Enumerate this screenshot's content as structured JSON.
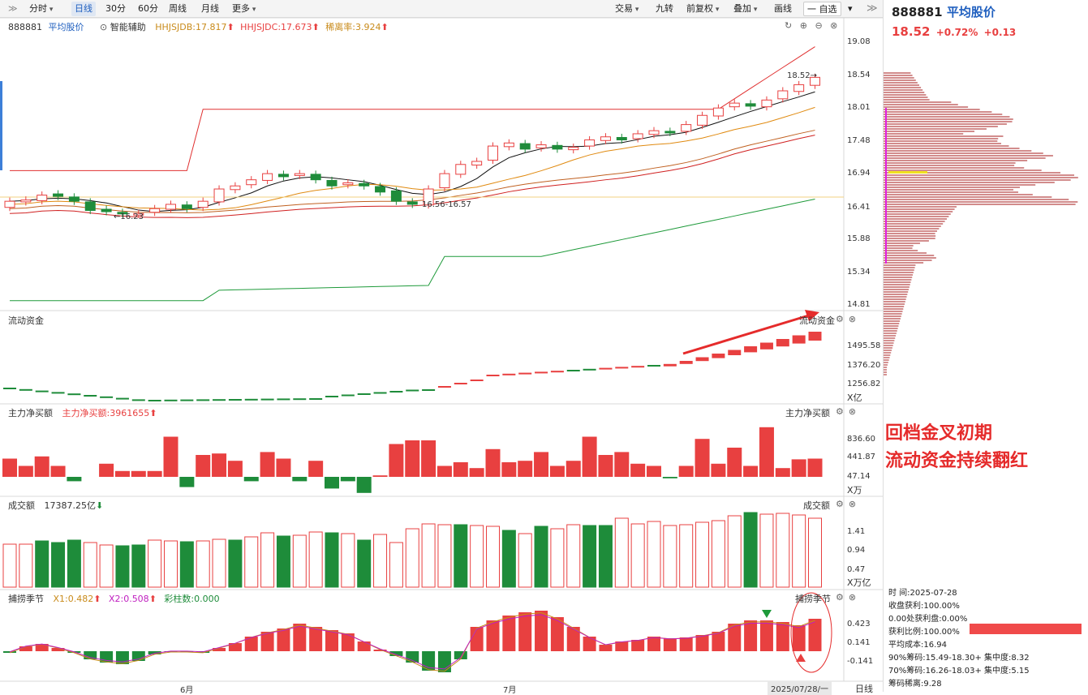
{
  "toolbar": {
    "left": [
      {
        "label": "分时",
        "dd": true
      },
      {
        "label": "日线",
        "sel": true
      },
      {
        "label": "30分"
      },
      {
        "label": "60分"
      },
      {
        "label": "周线"
      },
      {
        "label": "月线"
      },
      {
        "label": "更多",
        "dd": true
      }
    ],
    "right": [
      {
        "label": "交易",
        "dd": true
      },
      {
        "label": "九转"
      },
      {
        "label": "前复权",
        "dd": true
      },
      {
        "label": "叠加",
        "dd": true
      },
      {
        "label": "画线"
      },
      {
        "label": "一 自选"
      }
    ]
  },
  "stock": {
    "code": "888881",
    "name": "平均股价",
    "price": "18.52",
    "pct": "+0.72%",
    "chg": "+0.13"
  },
  "main_pane": {
    "code": "888881",
    "name": "平均股价",
    "assist": "智能辅助",
    "ind1": "HHJSJDB:17.817",
    "ind2": "HHJSJDC:17.673",
    "ind3": "稀离率:3.924",
    "y_ticks": [
      "19.08",
      "18.54",
      "18.01",
      "17.48",
      "16.94",
      "16.41",
      "15.88",
      "15.34",
      "14.81"
    ],
    "annot_low": "16.23",
    "annot_mid": "16.56-16.57",
    "annot_last": "18.52"
  },
  "flow_pane": {
    "title": "流动资金",
    "title_right": "流动资金",
    "y_ticks": [
      "1495.58",
      "1376.20",
      "1256.82"
    ],
    "unit": "X亿"
  },
  "net_pane": {
    "title": "主力净买额",
    "value": "主力净买额:3961655",
    "title_right": "主力净买额",
    "y_ticks": [
      "836.60",
      "441.87",
      "47.14"
    ],
    "unit": "X万"
  },
  "amount_pane": {
    "title": "成交额",
    "value": "17387.25亿",
    "title_right": "成交额",
    "y_ticks": [
      "1.41",
      "0.94",
      "0.47"
    ],
    "unit": "X万亿"
  },
  "season_pane": {
    "title": "捕捞季节",
    "x1": "X1:0.482",
    "x2": "X2:0.508",
    "bars": "彩柱数:0.000",
    "title_right": "捕捞季节",
    "y_ticks": [
      "0.423",
      "0.141",
      "-0.141"
    ]
  },
  "x_axis": {
    "m1": "6月",
    "m2": "7月",
    "date": "2025/07/28/一",
    "period": "日线"
  },
  "annotation": {
    "line1": "回档金叉初期",
    "line2": "流动资金持续翻红"
  },
  "chip_info": {
    "rows": [
      "时      间:2025-07-28",
      "收盘获利:100.00%",
      "0.00处获利盘:0.00%",
      "获利比例:100.00%",
      "平均成本:16.94",
      "90%筹码:15.49-18.30+ 集中度:8.32",
      "70%筹码:16.26-18.03+ 集中度:5.15",
      "筹码稀离:9.28"
    ]
  },
  "colors": {
    "up": "#e84040",
    "down": "#1e8c3a",
    "accent": "#1f5fbf"
  }
}
